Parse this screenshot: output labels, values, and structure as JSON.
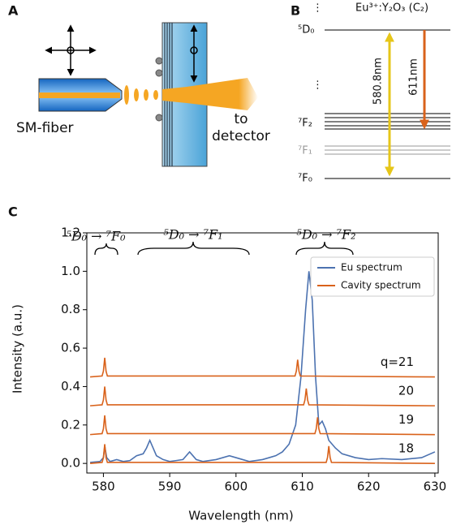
{
  "panel_labels": [
    "A",
    "B",
    "C"
  ],
  "panel_a": {
    "fiber": "SM-fiber",
    "detector": [
      "to",
      "detector"
    ]
  },
  "panel_b": {
    "title": "Eu³⁺:Y₂O₃ (C₂)",
    "levels": [
      "⁵D₀",
      "⁷F₂",
      "⁷F₁",
      "⁷F₀"
    ],
    "transitions": [
      "580.8nm",
      "611nm"
    ],
    "dots": "⋮"
  },
  "chart_data": {
    "type": "line",
    "xlabel": "Wavelength (nm)",
    "ylabel": "Intensity (a.u.)",
    "xlim": [
      577.5,
      630.5
    ],
    "ylim": [
      -0.05,
      1.2
    ],
    "xticks": [
      580,
      590,
      600,
      610,
      620,
      630
    ],
    "yticks": [
      {
        "value": 0,
        "label": "0.0"
      },
      {
        "value": 0.2,
        "label": "0.2"
      },
      {
        "value": 0.4,
        "label": "0.4"
      },
      {
        "value": 0.6,
        "label": "0.6"
      },
      {
        "value": 0.8,
        "label": "0.8"
      },
      {
        "value": 1,
        "label": "1.0"
      },
      {
        "value": 1.2,
        "label": "1.2"
      }
    ],
    "legend": "upper right",
    "annotations": [
      "⁵D₀ → ⁷F₀",
      "⁵D₀ → ⁷F₁",
      "⁵D₀ → ⁷F₂"
    ],
    "series": [
      {
        "name": "Eu spectrum",
        "color": "#4c72b0",
        "x": [
          578,
          579.5,
          580,
          580.2,
          580.5,
          581,
          582,
          583,
          584,
          585,
          586,
          586.5,
          587,
          587.5,
          588,
          589,
          590,
          591,
          592,
          593,
          593.5,
          594,
          595,
          597,
          599,
          600,
          601,
          602,
          604,
          605,
          606,
          607,
          608,
          609,
          609.8,
          610.5,
          611,
          611.5,
          612,
          612.5,
          613,
          613.5,
          614,
          615,
          616,
          618,
          620,
          622,
          625,
          628,
          630
        ],
        "values": [
          0.005,
          0.01,
          0.03,
          0.09,
          0.03,
          0.01,
          0.02,
          0.01,
          0.015,
          0.04,
          0.05,
          0.08,
          0.12,
          0.08,
          0.04,
          0.02,
          0.01,
          0.015,
          0.02,
          0.06,
          0.04,
          0.02,
          0.01,
          0.02,
          0.04,
          0.03,
          0.02,
          0.01,
          0.02,
          0.03,
          0.04,
          0.06,
          0.1,
          0.2,
          0.45,
          0.8,
          1.0,
          0.85,
          0.45,
          0.2,
          0.22,
          0.18,
          0.12,
          0.08,
          0.05,
          0.03,
          0.02,
          0.025,
          0.02,
          0.03,
          0.06
        ]
      },
      {
        "name": "Cavity spectrum",
        "color": "#d9621b",
        "traces": [
          {
            "label": "q=21",
            "x": [
              578,
              579.8,
              580,
              580.2,
              580.4,
              580.6,
              608.9,
              609.1,
              609.3,
              609.5,
              609.7,
              630
            ],
            "values": [
              0.45,
              0.455,
              0.48,
              0.55,
              0.48,
              0.455,
              0.455,
              0.48,
              0.54,
              0.48,
              0.455,
              0.45
            ]
          },
          {
            "label": "20",
            "x": [
              578,
              579.8,
              580,
              580.2,
              580.4,
              580.6,
              610.2,
              610.4,
              610.6,
              610.8,
              611,
              630
            ],
            "values": [
              0.3,
              0.305,
              0.33,
              0.4,
              0.33,
              0.305,
              0.305,
              0.33,
              0.39,
              0.33,
              0.305,
              0.3
            ]
          },
          {
            "label": "19",
            "x": [
              578,
              579.8,
              580,
              580.2,
              580.4,
              580.6,
              611.9,
              612.1,
              612.3,
              612.5,
              612.7,
              630
            ],
            "values": [
              0.15,
              0.155,
              0.18,
              0.25,
              0.18,
              0.155,
              0.155,
              0.18,
              0.24,
              0.18,
              0.155,
              0.15
            ]
          },
          {
            "label": "18",
            "x": [
              578,
              579.8,
              580,
              580.2,
              580.4,
              580.6,
              613.6,
              613.8,
              614,
              614.2,
              614.4,
              630
            ],
            "values": [
              0,
              0.005,
              0.03,
              0.1,
              0.03,
              0.005,
              0.005,
              0.03,
              0.09,
              0.03,
              0.005,
              0
            ]
          }
        ]
      }
    ]
  }
}
